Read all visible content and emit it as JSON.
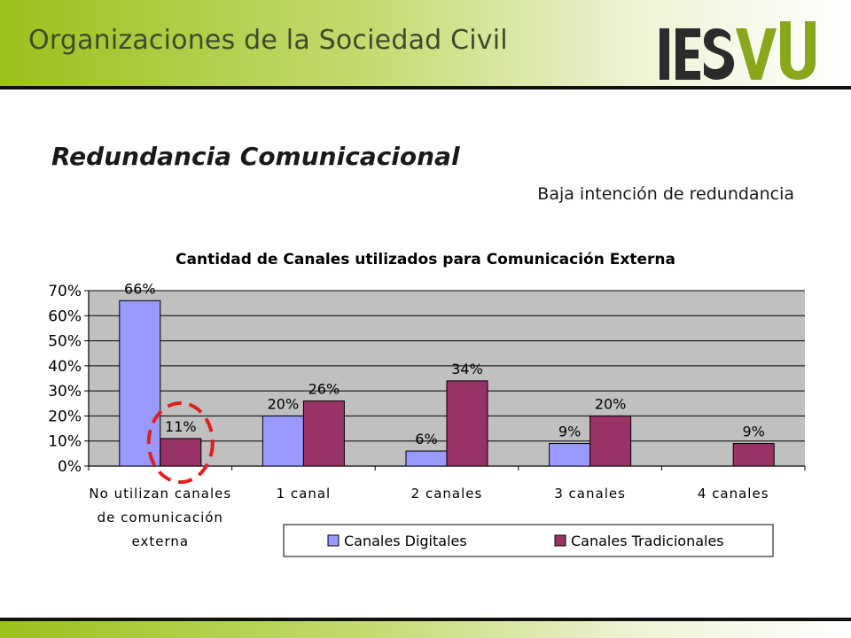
{
  "header": {
    "title": "Organizaciones de la Sociedad Civil",
    "logo_text": "IESVU",
    "brand_color": "#9bc11c"
  },
  "slide": {
    "title": "Redundancia Comunicacional",
    "note": "Baja intención de redundancia"
  },
  "chart_data": {
    "type": "bar",
    "title": "Cantidad de Canales utilizados para Comunicación Externa",
    "categories": [
      [
        "No utilizan canales",
        "de comunicación",
        "externa"
      ],
      [
        "1 canal"
      ],
      [
        "2 canales"
      ],
      [
        "3 canales"
      ],
      [
        "4 canales"
      ]
    ],
    "series": [
      {
        "name": "Canales Digitales",
        "color": "#9999ff",
        "values": [
          66,
          20,
          6,
          9,
          0
        ],
        "labels": [
          "66%",
          "20%",
          "6%",
          "9%",
          ""
        ]
      },
      {
        "name": "Canales Tradicionales",
        "color": "#993366",
        "values": [
          11,
          26,
          34,
          20,
          9
        ],
        "labels": [
          "11%",
          "26%",
          "34%",
          "20%",
          "9%"
        ]
      }
    ],
    "ylim": [
      0,
      70
    ],
    "yticks": [
      "0%",
      "10%",
      "20%",
      "30%",
      "40%",
      "50%",
      "60%",
      "70%"
    ],
    "plot_background": "#c0c0c0",
    "grid": true,
    "legend": "bottom",
    "highlight": {
      "category_index": 0,
      "series_index": 1,
      "color": "#e02020"
    }
  }
}
